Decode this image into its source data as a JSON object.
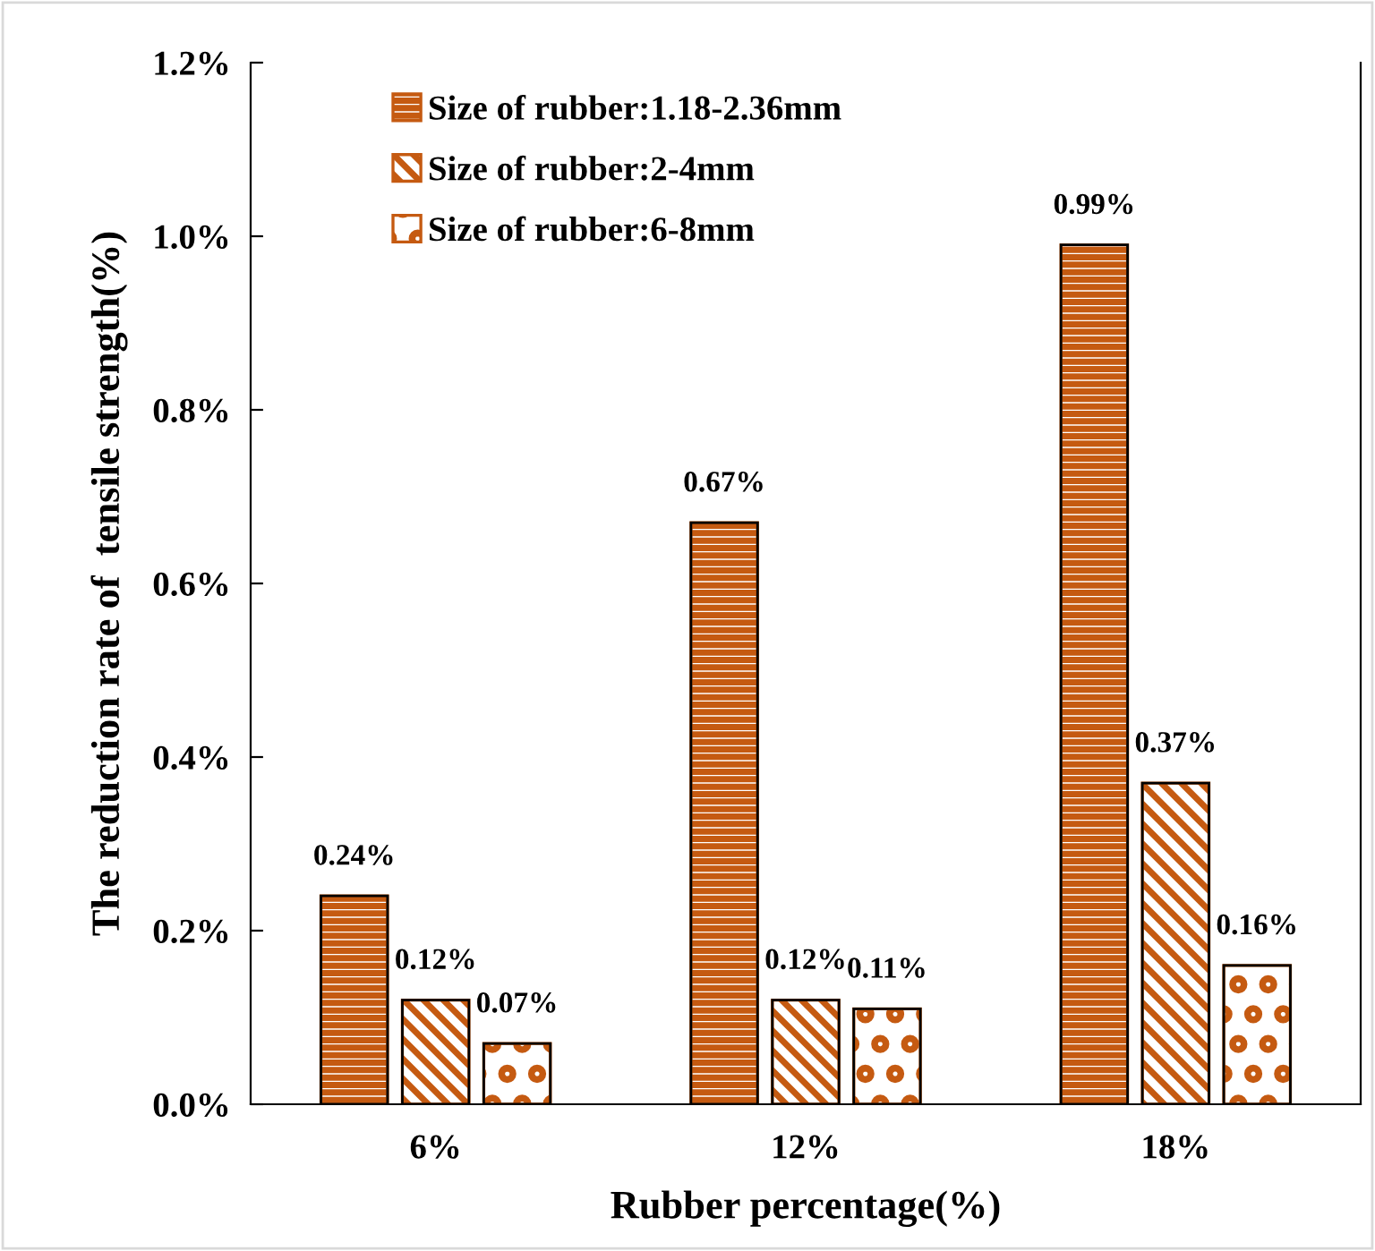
{
  "chart_data": {
    "type": "bar",
    "xlabel": "Rubber percentage(%)",
    "ylabel": "The reduction rate of  tensile strength(%)",
    "categories": [
      "6%",
      "12%",
      "18%"
    ],
    "series": [
      {
        "name": "Size of rubber:1.18-2.36mm",
        "color": "#c55a11",
        "values": [
          0.24,
          0.67,
          0.99
        ],
        "value_labels": [
          "0.24%",
          "0.67%",
          "0.99%"
        ]
      },
      {
        "name": "Size of rubber:2-4mm",
        "color": "#c55a11",
        "values": [
          0.12,
          0.12,
          0.37
        ],
        "value_labels": [
          "0.12%",
          "0.12%",
          "0.37%"
        ]
      },
      {
        "name": "Size of rubber:6-8mm",
        "color": "#c55a11",
        "values": [
          0.07,
          0.11,
          0.16
        ],
        "value_labels": [
          "0.07%",
          "0.11%",
          "0.16%"
        ]
      }
    ],
    "ylim": [
      0,
      1.2
    ],
    "yticks": [
      {
        "value": 0,
        "label": "0.0%"
      },
      {
        "value": 0.2,
        "label": "0.2%"
      },
      {
        "value": 0.4,
        "label": "0.4%"
      },
      {
        "value": 0.6,
        "label": "0.6%"
      },
      {
        "value": 0.8,
        "label": "0.8%"
      },
      {
        "value": 1.0,
        "label": "1.0%"
      },
      {
        "value": 1.2,
        "label": "1.2%"
      }
    ],
    "grid": false,
    "legend": "top left"
  }
}
